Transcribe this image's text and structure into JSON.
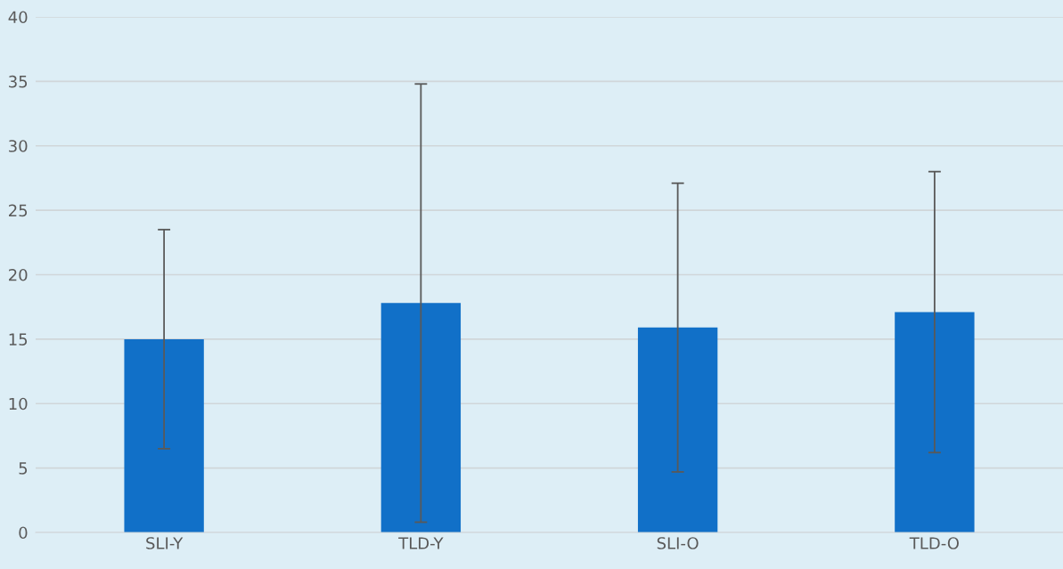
{
  "chart_data": {
    "type": "bar",
    "categories": [
      "SLI-Y",
      "TLD-Y",
      "SLI-O",
      "TLD-O"
    ],
    "series": [
      {
        "color": "#1170c8",
        "values": [
          15.0,
          17.8,
          15.9,
          17.1
        ],
        "errors": [
          8.5,
          17.0,
          11.2,
          10.9
        ]
      }
    ],
    "ylim": [
      0,
      40
    ],
    "yticks": [
      0,
      5,
      10,
      15,
      20,
      25,
      30,
      35,
      40
    ],
    "grid": "y",
    "legend": false
  }
}
